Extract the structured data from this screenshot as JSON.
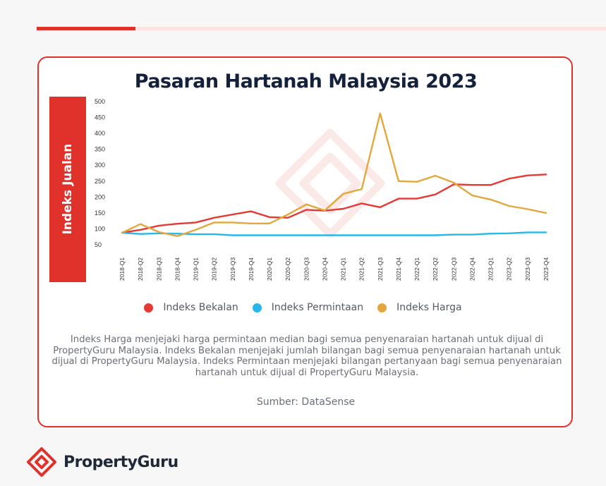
{
  "title": "Pasaran Hartanah Malaysia 2023",
  "description": "Indeks Harga menjejaki harga permintaan median bagi semua penyenaraian hartanah untuk dijual di PropertyGuru Malaysia. Indeks Bekalan menjejaki jumlah bilangan bagi semua penyenaraian hartanah untuk dijual di PropertyGuru Malaysia. Indeks Permintaan menjejaki bilangan pertanyaan bagi semua penyenaraian hartanah untuk dijual di PropertyGuru Malaysia.",
  "source": "Sumber: DataSense",
  "brand": {
    "name": "PropertyGuru",
    "logo_icon": "propertyguru-logo-icon"
  },
  "colors": {
    "accent": "#e0312b",
    "bekalan": "#e53935",
    "permintaan": "#29b6e8",
    "harga": "#e3a73c"
  },
  "chart_data": {
    "type": "line",
    "ylabel": "Indeks Jualan",
    "xlabel": "",
    "ylim": [
      50,
      500
    ],
    "yticks": [
      500,
      450,
      400,
      350,
      300,
      250,
      200,
      150,
      100,
      50
    ],
    "grid": false,
    "legend_position": "bottom",
    "categories": [
      "2018-Q1",
      "2018-Q2",
      "2018-Q3",
      "2018-Q4",
      "2019-Q1",
      "2019-Q2",
      "2019-Q3",
      "2019-Q4",
      "2020-Q1",
      "2020-Q2",
      "2020-Q3",
      "2020-Q4",
      "2021-Q1",
      "2021-Q2",
      "2021-Q3",
      "2021-Q4",
      "2022-Q1",
      "2022-Q2",
      "2022-Q3",
      "2022-Q4",
      "2023-Q1",
      "2023-Q2",
      "2023-Q3",
      "2023-Q4"
    ],
    "series": [
      {
        "name": "Indeks Bekalan",
        "color": "#e53935",
        "values": [
          88,
          97,
          110,
          116,
          120,
          135,
          145,
          155,
          137,
          135,
          160,
          157,
          163,
          180,
          168,
          195,
          195,
          208,
          240,
          238,
          238,
          258,
          268,
          271
        ]
      },
      {
        "name": "Indeks Permintaan",
        "color": "#29b6e8",
        "values": [
          88,
          84,
          86,
          85,
          83,
          83,
          80,
          80,
          80,
          80,
          80,
          80,
          80,
          80,
          80,
          80,
          80,
          80,
          82,
          82,
          85,
          86,
          89,
          89
        ]
      },
      {
        "name": "Indeks Harga",
        "color": "#e3a73c",
        "values": [
          88,
          115,
          90,
          77,
          97,
          120,
          120,
          117,
          117,
          145,
          177,
          158,
          210,
          225,
          463,
          250,
          248,
          267,
          245,
          205,
          192,
          172,
          162,
          150
        ]
      }
    ]
  }
}
